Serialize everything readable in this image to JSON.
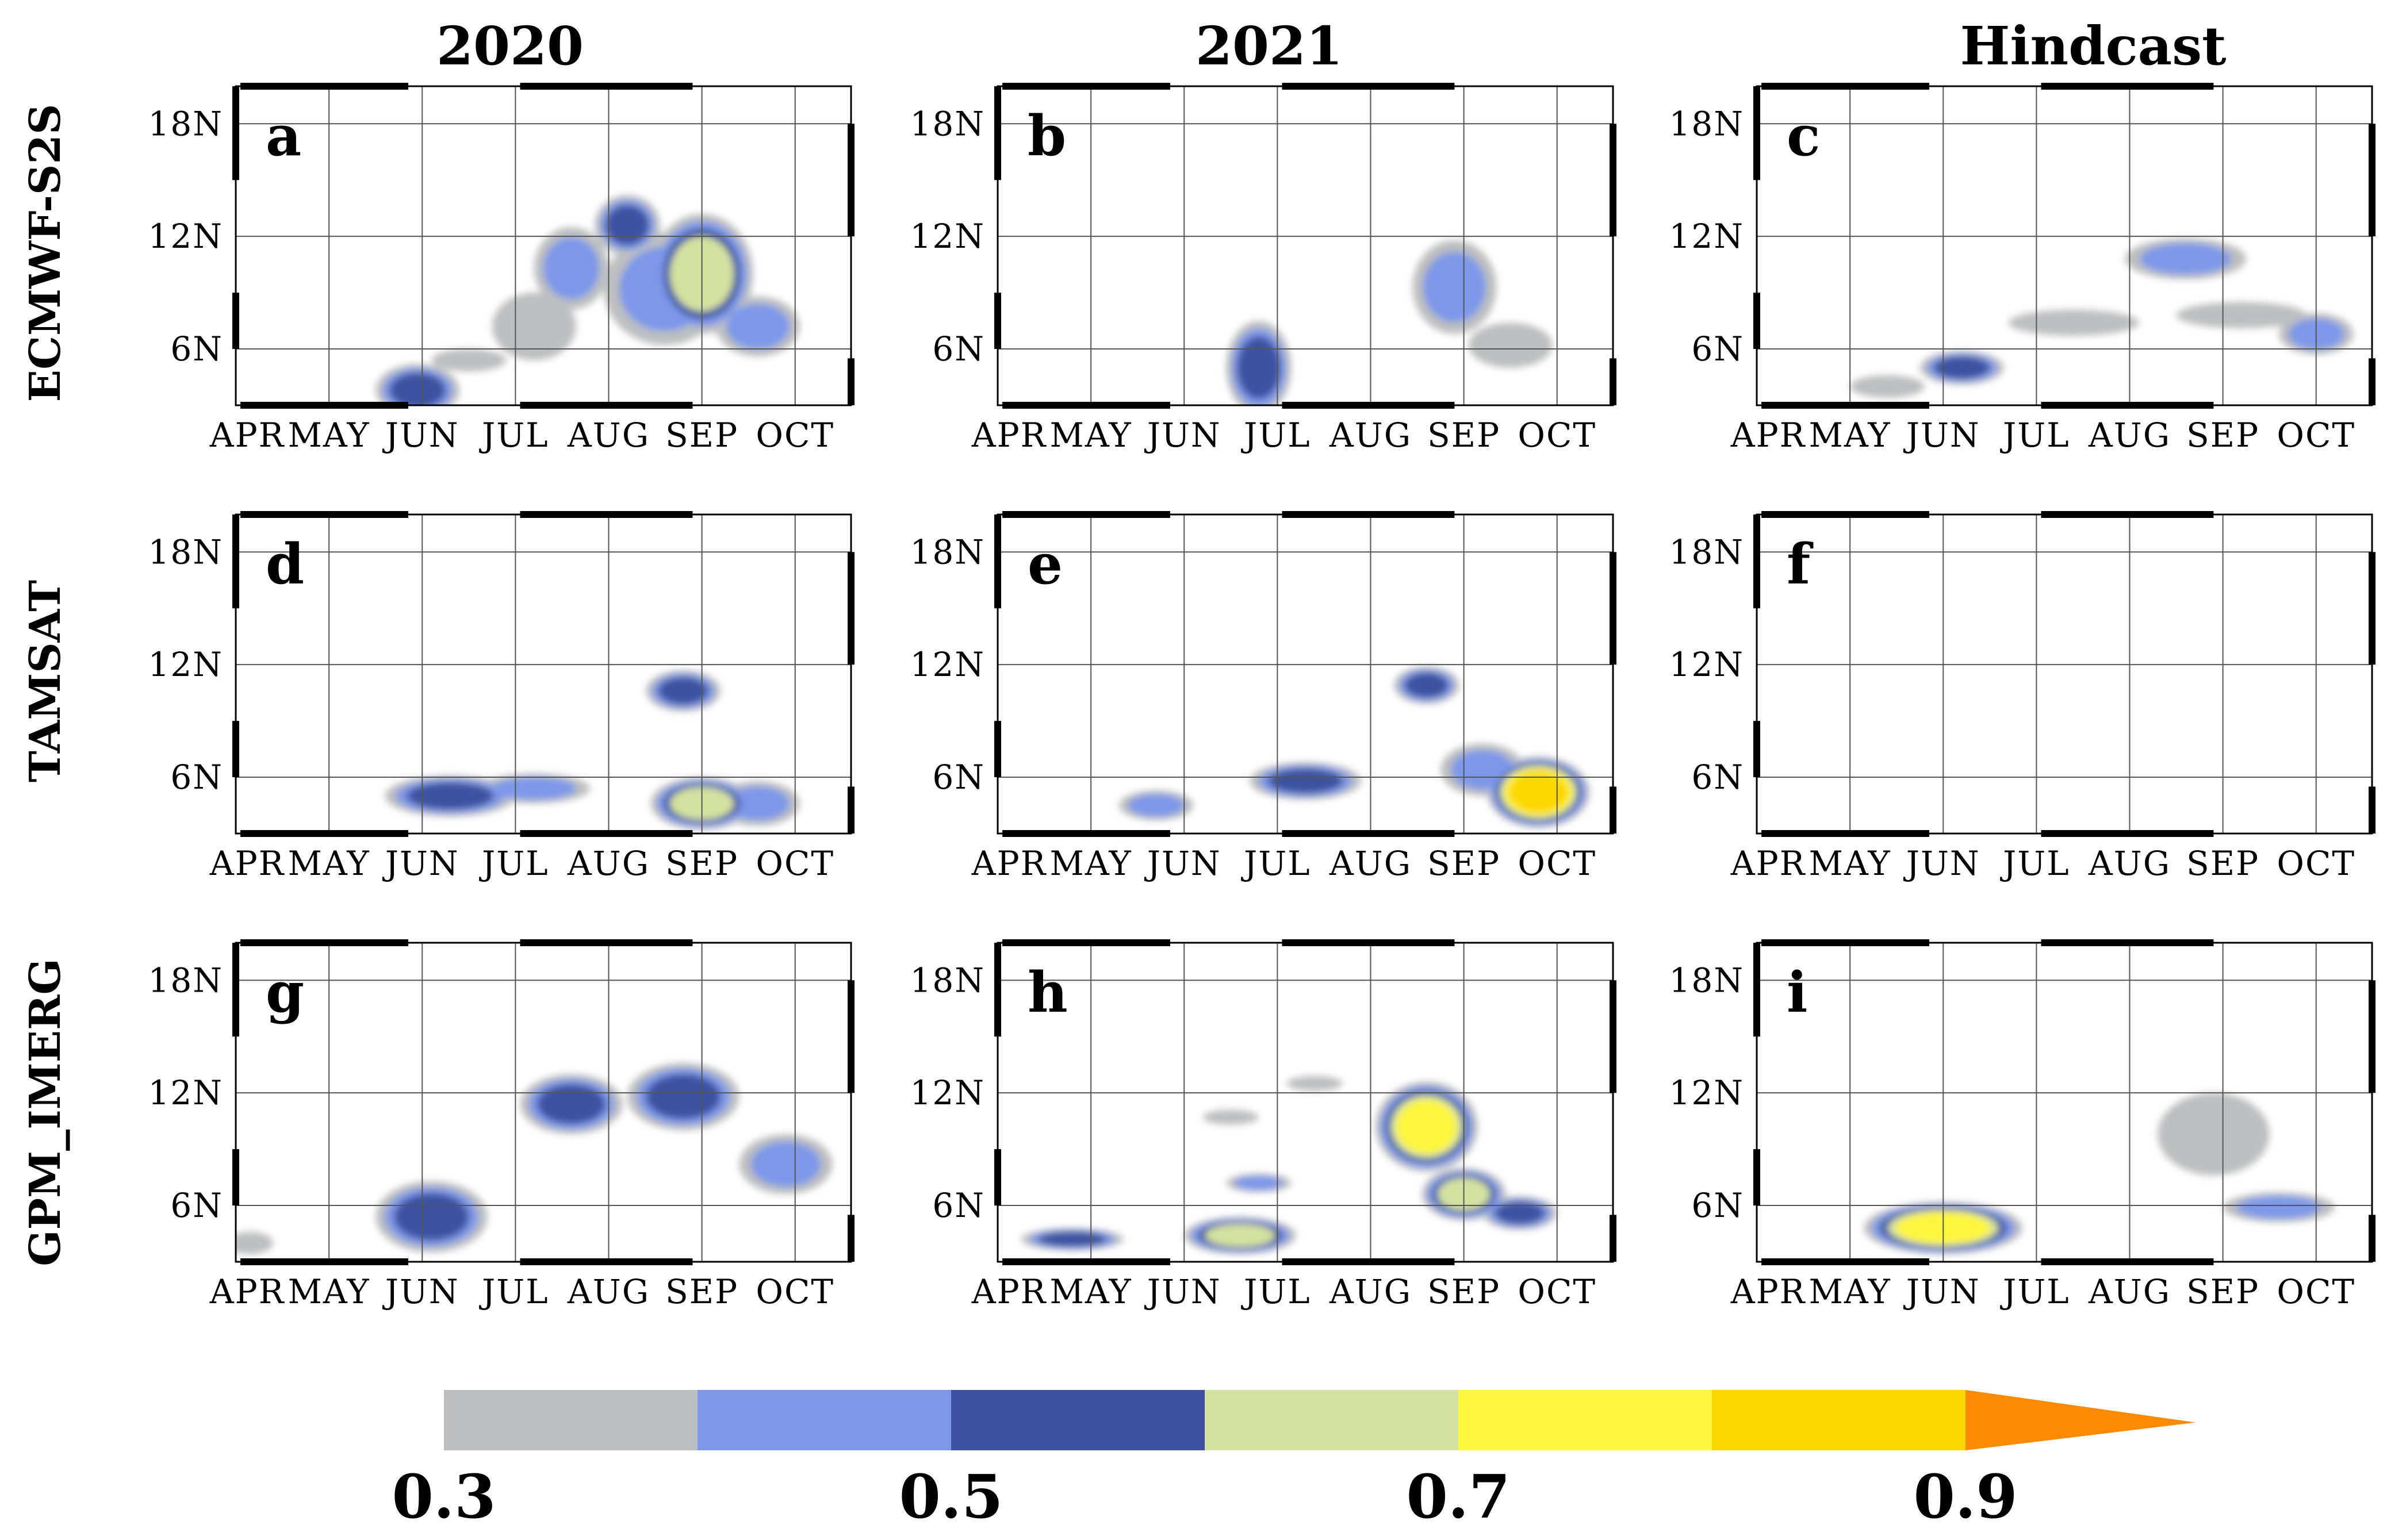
{
  "column_titles": [
    "2020",
    "2021",
    "Hindcast"
  ],
  "row_titles": [
    "ECMWF-S2S",
    "TAMSAT",
    "GPM_IMERG"
  ],
  "chart_data": {
    "type": "contour-panels",
    "x_axis": {
      "range": [
        0,
        6.6
      ],
      "ticks": [
        0,
        1,
        2,
        3,
        4,
        5,
        6
      ],
      "tick_labels": [
        "APR",
        "MAY",
        "JUN",
        "JUL",
        "AUG",
        "SEP",
        "OCT"
      ],
      "grid": true
    },
    "y_axis": {
      "range": [
        3,
        20
      ],
      "ticks": [
        6,
        12,
        18
      ],
      "tick_labels": [
        "6N",
        "12N",
        "18N"
      ],
      "grid": true
    },
    "colorbar": {
      "levels": [
        0.3,
        0.4,
        0.5,
        0.6,
        0.7,
        0.8,
        0.9,
        1.0
      ],
      "colors": [
        "#bcbfc1",
        "#7d98e8",
        "#3e52a0",
        "#d4e2a1",
        "#fef63c",
        "#fed700",
        "#fd8a00"
      ],
      "labeled_values": [
        "0.3",
        "0.5",
        "0.7",
        "0.9"
      ],
      "extend": "max"
    },
    "panels": [
      {
        "label": "a",
        "row": 0,
        "col": 0,
        "blobs": [
          {
            "x": 1.95,
            "y": 3.8,
            "rx": 0.45,
            "ry": 1.4,
            "lev": 2
          },
          {
            "x": 2.5,
            "y": 5.4,
            "rx": 0.4,
            "ry": 0.6,
            "lev": 0
          },
          {
            "x": 3.2,
            "y": 7.2,
            "rx": 0.45,
            "ry": 1.8,
            "lev": 0
          },
          {
            "x": 3.6,
            "y": 10.3,
            "rx": 0.4,
            "ry": 2.2,
            "lev": 1
          },
          {
            "x": 4.2,
            "y": 12.6,
            "rx": 0.35,
            "ry": 1.6,
            "lev": 2
          },
          {
            "x": 4.6,
            "y": 9.2,
            "rx": 0.65,
            "ry": 3.0,
            "lev": 1
          },
          {
            "x": 5.0,
            "y": 10.0,
            "rx": 0.55,
            "ry": 3.2,
            "lev": 3
          },
          {
            "x": 5.6,
            "y": 7.2,
            "rx": 0.45,
            "ry": 1.6,
            "lev": 1
          }
        ]
      },
      {
        "label": "b",
        "row": 0,
        "col": 1,
        "blobs": [
          {
            "x": 2.8,
            "y": 5.0,
            "rx": 0.35,
            "ry": 2.5,
            "lev": 2
          },
          {
            "x": 4.9,
            "y": 9.3,
            "rx": 0.45,
            "ry": 2.5,
            "lev": 1
          },
          {
            "x": 5.5,
            "y": 6.2,
            "rx": 0.45,
            "ry": 1.2,
            "lev": 0
          }
        ]
      },
      {
        "label": "c",
        "row": 0,
        "col": 2,
        "blobs": [
          {
            "x": 2.2,
            "y": 5.0,
            "rx": 0.45,
            "ry": 0.9,
            "lev": 2
          },
          {
            "x": 1.4,
            "y": 4.0,
            "rx": 0.4,
            "ry": 0.6,
            "lev": 0
          },
          {
            "x": 3.4,
            "y": 7.4,
            "rx": 0.7,
            "ry": 0.7,
            "lev": 0
          },
          {
            "x": 4.6,
            "y": 10.8,
            "rx": 0.65,
            "ry": 1.1,
            "lev": 1
          },
          {
            "x": 5.2,
            "y": 7.8,
            "rx": 0.7,
            "ry": 0.7,
            "lev": 0
          },
          {
            "x": 6.0,
            "y": 6.8,
            "rx": 0.4,
            "ry": 1.1,
            "lev": 1
          }
        ]
      },
      {
        "label": "d",
        "row": 1,
        "col": 0,
        "blobs": [
          {
            "x": 2.3,
            "y": 5.0,
            "rx": 0.7,
            "ry": 1.1,
            "lev": 2
          },
          {
            "x": 3.2,
            "y": 5.4,
            "rx": 0.6,
            "ry": 0.8,
            "lev": 1
          },
          {
            "x": 4.8,
            "y": 10.6,
            "rx": 0.4,
            "ry": 1.1,
            "lev": 2
          },
          {
            "x": 5.0,
            "y": 4.6,
            "rx": 0.55,
            "ry": 1.4,
            "lev": 3
          },
          {
            "x": 5.6,
            "y": 4.6,
            "rx": 0.45,
            "ry": 1.2,
            "lev": 1
          }
        ]
      },
      {
        "label": "e",
        "row": 1,
        "col": 1,
        "blobs": [
          {
            "x": 1.7,
            "y": 4.5,
            "rx": 0.4,
            "ry": 0.8,
            "lev": 1
          },
          {
            "x": 3.3,
            "y": 5.8,
            "rx": 0.6,
            "ry": 1.0,
            "lev": 2
          },
          {
            "x": 4.6,
            "y": 10.9,
            "rx": 0.35,
            "ry": 1.0,
            "lev": 2
          },
          {
            "x": 5.2,
            "y": 6.4,
            "rx": 0.45,
            "ry": 1.4,
            "lev": 1
          },
          {
            "x": 5.8,
            "y": 5.2,
            "rx": 0.55,
            "ry": 1.9,
            "lev": 5
          }
        ]
      },
      {
        "label": "f",
        "row": 1,
        "col": 2,
        "blobs": []
      },
      {
        "label": "g",
        "row": 2,
        "col": 0,
        "blobs": [
          {
            "x": 0.15,
            "y": 4.0,
            "rx": 0.25,
            "ry": 0.6,
            "lev": 0
          },
          {
            "x": 2.1,
            "y": 5.4,
            "rx": 0.6,
            "ry": 1.9,
            "lev": 2
          },
          {
            "x": 3.6,
            "y": 11.4,
            "rx": 0.55,
            "ry": 1.6,
            "lev": 2
          },
          {
            "x": 4.8,
            "y": 11.8,
            "rx": 0.6,
            "ry": 1.8,
            "lev": 2
          },
          {
            "x": 5.9,
            "y": 8.2,
            "rx": 0.5,
            "ry": 1.6,
            "lev": 1
          }
        ]
      },
      {
        "label": "h",
        "row": 2,
        "col": 1,
        "blobs": [
          {
            "x": 0.8,
            "y": 4.2,
            "rx": 0.55,
            "ry": 0.6,
            "lev": 2
          },
          {
            "x": 2.6,
            "y": 4.4,
            "rx": 0.6,
            "ry": 1.0,
            "lev": 3
          },
          {
            "x": 2.8,
            "y": 7.2,
            "rx": 0.35,
            "ry": 0.5,
            "lev": 1
          },
          {
            "x": 4.6,
            "y": 10.2,
            "rx": 0.55,
            "ry": 2.4,
            "lev": 4
          },
          {
            "x": 5.0,
            "y": 6.6,
            "rx": 0.45,
            "ry": 1.4,
            "lev": 3
          },
          {
            "x": 5.6,
            "y": 5.6,
            "rx": 0.4,
            "ry": 0.9,
            "lev": 2
          },
          {
            "x": 3.4,
            "y": 12.5,
            "rx": 0.3,
            "ry": 0.4,
            "lev": 0
          },
          {
            "x": 2.5,
            "y": 10.7,
            "rx": 0.3,
            "ry": 0.4,
            "lev": 0
          }
        ]
      },
      {
        "label": "i",
        "row": 2,
        "col": 2,
        "blobs": [
          {
            "x": 2.0,
            "y": 4.8,
            "rx": 0.85,
            "ry": 1.4,
            "lev": 4
          },
          {
            "x": 4.9,
            "y": 9.8,
            "rx": 0.6,
            "ry": 2.2,
            "lev": 0
          },
          {
            "x": 5.6,
            "y": 5.9,
            "rx": 0.6,
            "ry": 0.8,
            "lev": 1
          }
        ]
      }
    ]
  }
}
